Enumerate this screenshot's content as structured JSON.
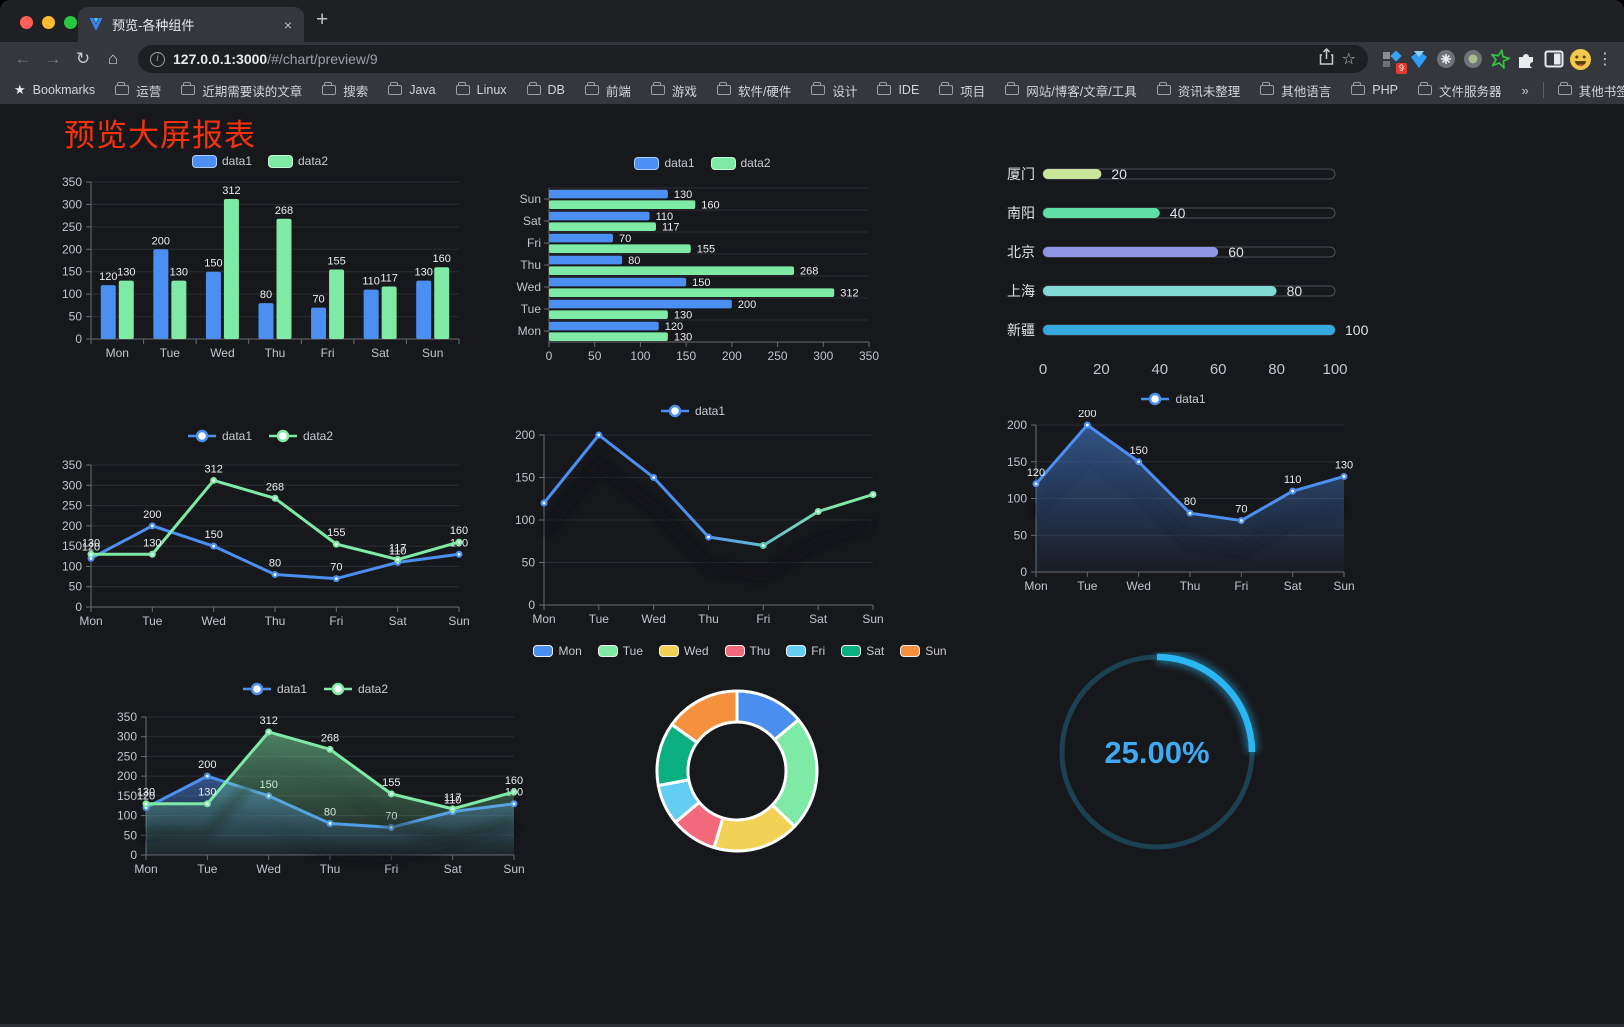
{
  "browser": {
    "tab": {
      "title": "预览-各种组件"
    },
    "url": {
      "host": "127.0.0.1:3000",
      "path": "/#/chart/preview/9"
    },
    "icons": {
      "back": "←",
      "forward": "→",
      "reload": "↻",
      "home": "⌂",
      "info": "i",
      "star": "☆",
      "menu": "⋮",
      "close": "×",
      "newtab": "+",
      "bookmark_star": "★",
      "badge": "9",
      "chevrons": "»"
    },
    "bookmarks_label": "Bookmarks",
    "bookmarks": [
      "运营",
      "近期需要读的文章",
      "搜索",
      "Java",
      "Linux",
      "DB",
      "前端",
      "游戏",
      "软件/硬件",
      "设计",
      "IDE",
      "项目",
      "网站/博客/文章/工具",
      "资讯未整理",
      "其他语言",
      "PHP",
      "文件服务器"
    ],
    "other_bookmarks": "其他书签"
  },
  "page": {
    "title": "预览大屏报表"
  },
  "chart_data": [
    {
      "id": "bar-vertical",
      "type": "bar",
      "categories": [
        "Mon",
        "Tue",
        "Wed",
        "Thu",
        "Fri",
        "Sat",
        "Sun"
      ],
      "series": [
        {
          "name": "data1",
          "color": "#4C8FF2",
          "values": [
            120,
            200,
            150,
            80,
            70,
            110,
            130
          ]
        },
        {
          "name": "data2",
          "color": "#7FEAA6",
          "values": [
            130,
            130,
            312,
            268,
            155,
            117,
            160
          ]
        }
      ],
      "ylim": [
        0,
        350
      ],
      "ystep": 50,
      "legend_position": "top",
      "grid": true,
      "labels": true
    },
    {
      "id": "bar-horizontal",
      "type": "bar-horizontal",
      "categories": [
        "Mon",
        "Tue",
        "Wed",
        "Thu",
        "Fri",
        "Sat",
        "Sun"
      ],
      "display_order_top_to_bottom": [
        "Sun",
        "Sat",
        "Fri",
        "Thu",
        "Wed",
        "Tue",
        "Mon"
      ],
      "series": [
        {
          "name": "data1",
          "color": "#4C8FF2",
          "values": [
            120,
            200,
            150,
            80,
            70,
            110,
            130
          ]
        },
        {
          "name": "data2",
          "color": "#7FEAA6",
          "values": [
            130,
            130,
            312,
            268,
            155,
            117,
            160
          ]
        }
      ],
      "xlim": [
        0,
        350
      ],
      "xstep": 50,
      "legend_position": "top",
      "labels": true
    },
    {
      "id": "progress",
      "type": "progress-bars",
      "max": 100,
      "items": [
        {
          "label": "厦门",
          "value": 20,
          "color": "#C9E69B"
        },
        {
          "label": "南阳",
          "value": 40,
          "color": "#5FDFA6"
        },
        {
          "label": "北京",
          "value": 60,
          "color": "#9096E3"
        },
        {
          "label": "上海",
          "value": 80,
          "color": "#82DAD5"
        },
        {
          "label": "新疆",
          "value": 100,
          "color": "#35A9DE"
        }
      ],
      "ticks": [
        0,
        20,
        40,
        60,
        80,
        100
      ]
    },
    {
      "id": "line-two",
      "type": "line",
      "categories": [
        "Mon",
        "Tue",
        "Wed",
        "Thu",
        "Fri",
        "Sat",
        "Sun"
      ],
      "series": [
        {
          "name": "data1",
          "color": "#4C8FF2",
          "values": [
            120,
            200,
            150,
            80,
            70,
            110,
            130
          ]
        },
        {
          "name": "data2",
          "color": "#7FEAA6",
          "values": [
            130,
            130,
            312,
            268,
            155,
            117,
            160
          ]
        }
      ],
      "ylim": [
        0,
        350
      ],
      "ystep": 50,
      "legend_position": "top",
      "labels": true
    },
    {
      "id": "line-gradient",
      "type": "line",
      "categories": [
        "Mon",
        "Tue",
        "Wed",
        "Thu",
        "Fri",
        "Sat",
        "Sun"
      ],
      "series": [
        {
          "name": "data1",
          "color": "#4C8FF2",
          "color_end": "#7FEAA6",
          "gradient": true,
          "values": [
            120,
            200,
            150,
            80,
            70,
            110,
            130
          ]
        }
      ],
      "ylim": [
        0,
        200
      ],
      "ystep": 50,
      "legend_position": "top",
      "labels": false,
      "shadow": true
    },
    {
      "id": "area-single",
      "type": "area",
      "categories": [
        "Mon",
        "Tue",
        "Wed",
        "Thu",
        "Fri",
        "Sat",
        "Sun"
      ],
      "series": [
        {
          "name": "data1",
          "color": "#4C8FF2",
          "area": true,
          "values": [
            120,
            200,
            150,
            80,
            70,
            110,
            130
          ]
        }
      ],
      "ylim": [
        0,
        200
      ],
      "ystep": 50,
      "legend_position": "top",
      "labels": true,
      "shadow": true
    },
    {
      "id": "area-two",
      "type": "area",
      "categories": [
        "Mon",
        "Tue",
        "Wed",
        "Thu",
        "Fri",
        "Sat",
        "Sun"
      ],
      "series": [
        {
          "name": "data1",
          "color": "#4C8FF2",
          "area": true,
          "values": [
            120,
            200,
            150,
            80,
            70,
            110,
            130
          ]
        },
        {
          "name": "data2",
          "color": "#7FEAA6",
          "area": true,
          "values": [
            130,
            130,
            312,
            268,
            155,
            117,
            160
          ]
        }
      ],
      "ylim": [
        0,
        350
      ],
      "ystep": 50,
      "legend_position": "top",
      "labels": true,
      "shadow": true
    },
    {
      "id": "donut",
      "type": "donut",
      "legend_position": "top",
      "items": [
        {
          "label": "Mon",
          "value": 120,
          "color": "#4A8FF0"
        },
        {
          "label": "Tue",
          "value": 200,
          "color": "#7FEAA6"
        },
        {
          "label": "Wed",
          "value": 150,
          "color": "#F2D157"
        },
        {
          "label": "Thu",
          "value": 80,
          "color": "#F2697C"
        },
        {
          "label": "Fri",
          "value": 70,
          "color": "#63CDF2"
        },
        {
          "label": "Sat",
          "value": 110,
          "color": "#0CB080"
        },
        {
          "label": "Sun",
          "value": 130,
          "color": "#F5913C"
        }
      ]
    },
    {
      "id": "gauge",
      "type": "gauge",
      "value": 25,
      "label": "25.00%",
      "color": "#29B6F2",
      "track_color": "#1C4152",
      "text_color": "#3FA9F2"
    }
  ]
}
